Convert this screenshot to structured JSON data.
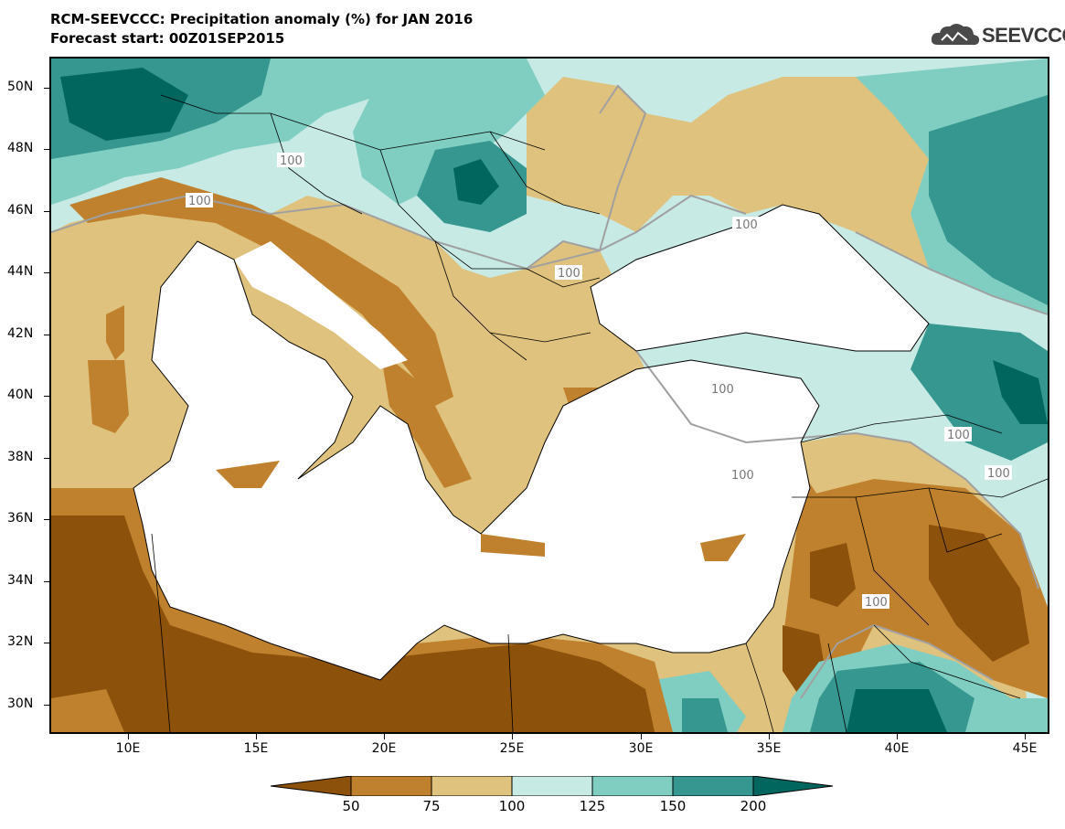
{
  "title_line1": "RCM-SEEVCCC: Precipitation anomaly (%) for JAN 2016",
  "title_line2": "Forecast start: 00Z01SEP2015",
  "logo_text": "SEEVCCC",
  "lat_labels": [
    "50N",
    "48N",
    "46N",
    "44N",
    "42N",
    "40N",
    "38N",
    "36N",
    "34N",
    "32N",
    "30N"
  ],
  "lon_labels": [
    "10E",
    "15E",
    "20E",
    "25E",
    "30E",
    "35E",
    "40E",
    "45E"
  ],
  "contour_label": "100",
  "colorbar_labels": [
    "50",
    "75",
    "100",
    "125",
    "150",
    "200"
  ],
  "colors": {
    "lt50": "#8c510a",
    "c50_75": "#bf812d",
    "c75_100": "#dfc27d",
    "c100_125": "#c7eae5",
    "c125_150": "#80cdc1",
    "c150_200": "#35978f",
    "gt200": "#01665e",
    "sea": "#ffffff"
  }
}
